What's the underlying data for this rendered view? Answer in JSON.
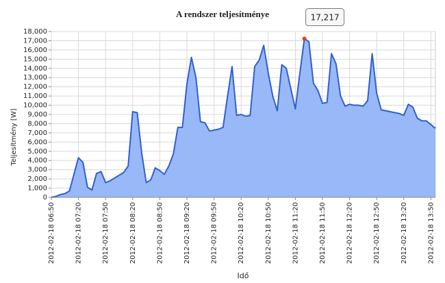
{
  "chart_data": {
    "type": "area",
    "title": "A rendszer teljesítménye",
    "xlabel": "Idő",
    "ylabel": "Teljesítmény [W]",
    "x": [
      "2012-02-18 06:50",
      "2012-02-18 06:55",
      "2012-02-18 07:00",
      "2012-02-18 07:05",
      "2012-02-18 07:10",
      "2012-02-18 07:15",
      "2012-02-18 07:20",
      "2012-02-18 07:25",
      "2012-02-18 07:30",
      "2012-02-18 07:35",
      "2012-02-18 07:40",
      "2012-02-18 07:45",
      "2012-02-18 07:50",
      "2012-02-18 07:55",
      "2012-02-18 08:00",
      "2012-02-18 08:05",
      "2012-02-18 08:10",
      "2012-02-18 08:15",
      "2012-02-18 08:20",
      "2012-02-18 08:25",
      "2012-02-18 08:30",
      "2012-02-18 08:35",
      "2012-02-18 08:40",
      "2012-02-18 08:45",
      "2012-02-18 08:50",
      "2012-02-18 08:55",
      "2012-02-18 09:00",
      "2012-02-18 09:05",
      "2012-02-18 09:10",
      "2012-02-18 09:15",
      "2012-02-18 09:20",
      "2012-02-18 09:25",
      "2012-02-18 09:30",
      "2012-02-18 09:35",
      "2012-02-18 09:40",
      "2012-02-18 09:45",
      "2012-02-18 09:50",
      "2012-02-18 09:55",
      "2012-02-18 10:00",
      "2012-02-18 10:05",
      "2012-02-18 10:10",
      "2012-02-18 10:15",
      "2012-02-18 10:20",
      "2012-02-18 10:25",
      "2012-02-18 10:30",
      "2012-02-18 10:35",
      "2012-02-18 10:40",
      "2012-02-18 10:45",
      "2012-02-18 10:50",
      "2012-02-18 10:55",
      "2012-02-18 11:00",
      "2012-02-18 11:05",
      "2012-02-18 11:10",
      "2012-02-18 11:15",
      "2012-02-18 11:20",
      "2012-02-18 11:25",
      "2012-02-18 11:30",
      "2012-02-18 11:35",
      "2012-02-18 11:40",
      "2012-02-18 11:45",
      "2012-02-18 11:50",
      "2012-02-18 11:55",
      "2012-02-18 12:00",
      "2012-02-18 12:05",
      "2012-02-18 12:10",
      "2012-02-18 12:15",
      "2012-02-18 12:20",
      "2012-02-18 12:25",
      "2012-02-18 12:30",
      "2012-02-18 12:35",
      "2012-02-18 12:40",
      "2012-02-18 12:45",
      "2012-02-18 12:50",
      "2012-02-18 12:55",
      "2012-02-18 13:00",
      "2012-02-18 13:05",
      "2012-02-18 13:10",
      "2012-02-18 13:15",
      "2012-02-18 13:20",
      "2012-02-18 13:25",
      "2012-02-18 13:30",
      "2012-02-18 13:35",
      "2012-02-18 13:40",
      "2012-02-18 13:45",
      "2012-02-18 13:50",
      "2012-02-18 13:55"
    ],
    "values": [
      0,
      100,
      300,
      400,
      700,
      2500,
      4300,
      3800,
      1100,
      800,
      2600,
      2800,
      1600,
      1800,
      2100,
      2400,
      2700,
      3400,
      9300,
      9200,
      4800,
      1600,
      1900,
      3200,
      2900,
      2500,
      3400,
      4700,
      7600,
      7600,
      12300,
      15200,
      13000,
      8200,
      8100,
      7200,
      7300,
      7400,
      7600,
      11000,
      14200,
      8900,
      9000,
      8800,
      8900,
      14200,
      14900,
      16500,
      13500,
      11000,
      9400,
      14400,
      14000,
      11800,
      9600,
      13500,
      17217,
      16900,
      12400,
      11600,
      10200,
      10300,
      15600,
      14500,
      11000,
      9900,
      10100,
      10000,
      10000,
      9900,
      10500,
      15600,
      11300,
      9500,
      9400,
      9300,
      9200,
      9100,
      8900,
      10100,
      9800,
      8600,
      8300,
      8300,
      7900,
      7500
    ],
    "value_labels": [
      null,
      null,
      null,
      null,
      null,
      null,
      null,
      null,
      null,
      null,
      null,
      null,
      null,
      null,
      null,
      null,
      null,
      null,
      null,
      null,
      null,
      null,
      null,
      null,
      null,
      null,
      null,
      null,
      null,
      null,
      null,
      null,
      null,
      null,
      null,
      null,
      null,
      null,
      null,
      null,
      null,
      null,
      null,
      null,
      null,
      null,
      null,
      null,
      null,
      null,
      null,
      null,
      null,
      null,
      null,
      null,
      "17,217",
      null,
      null,
      null,
      null,
      null,
      null,
      null,
      null,
      null,
      null,
      null,
      null,
      null,
      null,
      null,
      null,
      null,
      null,
      null,
      null,
      null,
      null,
      null,
      null,
      null,
      null,
      null,
      null,
      null
    ],
    "color": "#2f5fcf",
    "area_color": "#98b8f7",
    "highlight_color": "#e8400c",
    "xlim": [
      "2012-02-18 06:50",
      "2012-02-18 13:55"
    ],
    "xticks": [
      "2012-02-18 06:50",
      "2012-02-18 07:20",
      "2012-02-18 07:50",
      "2012-02-18 08:20",
      "2012-02-18 08:50",
      "2012-02-18 09:20",
      "2012-02-18 09:50",
      "2012-02-18 10:20",
      "2012-02-18 10:50",
      "2012-02-18 11:20",
      "2012-02-18 11:50",
      "2012-02-18 12:20",
      "2012-02-18 12:50",
      "2012-02-18 13:20",
      "2012-02-18 13:50"
    ],
    "ylim": [
      0,
      18000
    ],
    "yticks": [
      0,
      {
        "value": 1000,
        "label": "1,000"
      },
      {
        "value": 2000,
        "label": "2,000"
      },
      {
        "value": 3000,
        "label": "3,000"
      },
      {
        "value": 4000,
        "label": "4,000"
      },
      {
        "value": 5000,
        "label": "5,000"
      },
      {
        "value": 6000,
        "label": "6,000"
      },
      {
        "value": 7000,
        "label": "7,000"
      },
      {
        "value": 8000,
        "label": "8,000"
      },
      {
        "value": 9000,
        "label": "9,000"
      },
      {
        "value": 10000,
        "label": "10,000"
      },
      {
        "value": 11000,
        "label": "11,000"
      },
      {
        "value": 12000,
        "label": "12,000"
      },
      {
        "value": 13000,
        "label": "13,000"
      },
      {
        "value": 14000,
        "label": "14,000"
      },
      {
        "value": 15000,
        "label": "15,000"
      },
      {
        "value": 16000,
        "label": "16,000"
      },
      {
        "value": 17000,
        "label": "17,000"
      },
      {
        "value": 18000,
        "label": "18,000"
      }
    ],
    "grid": true
  }
}
